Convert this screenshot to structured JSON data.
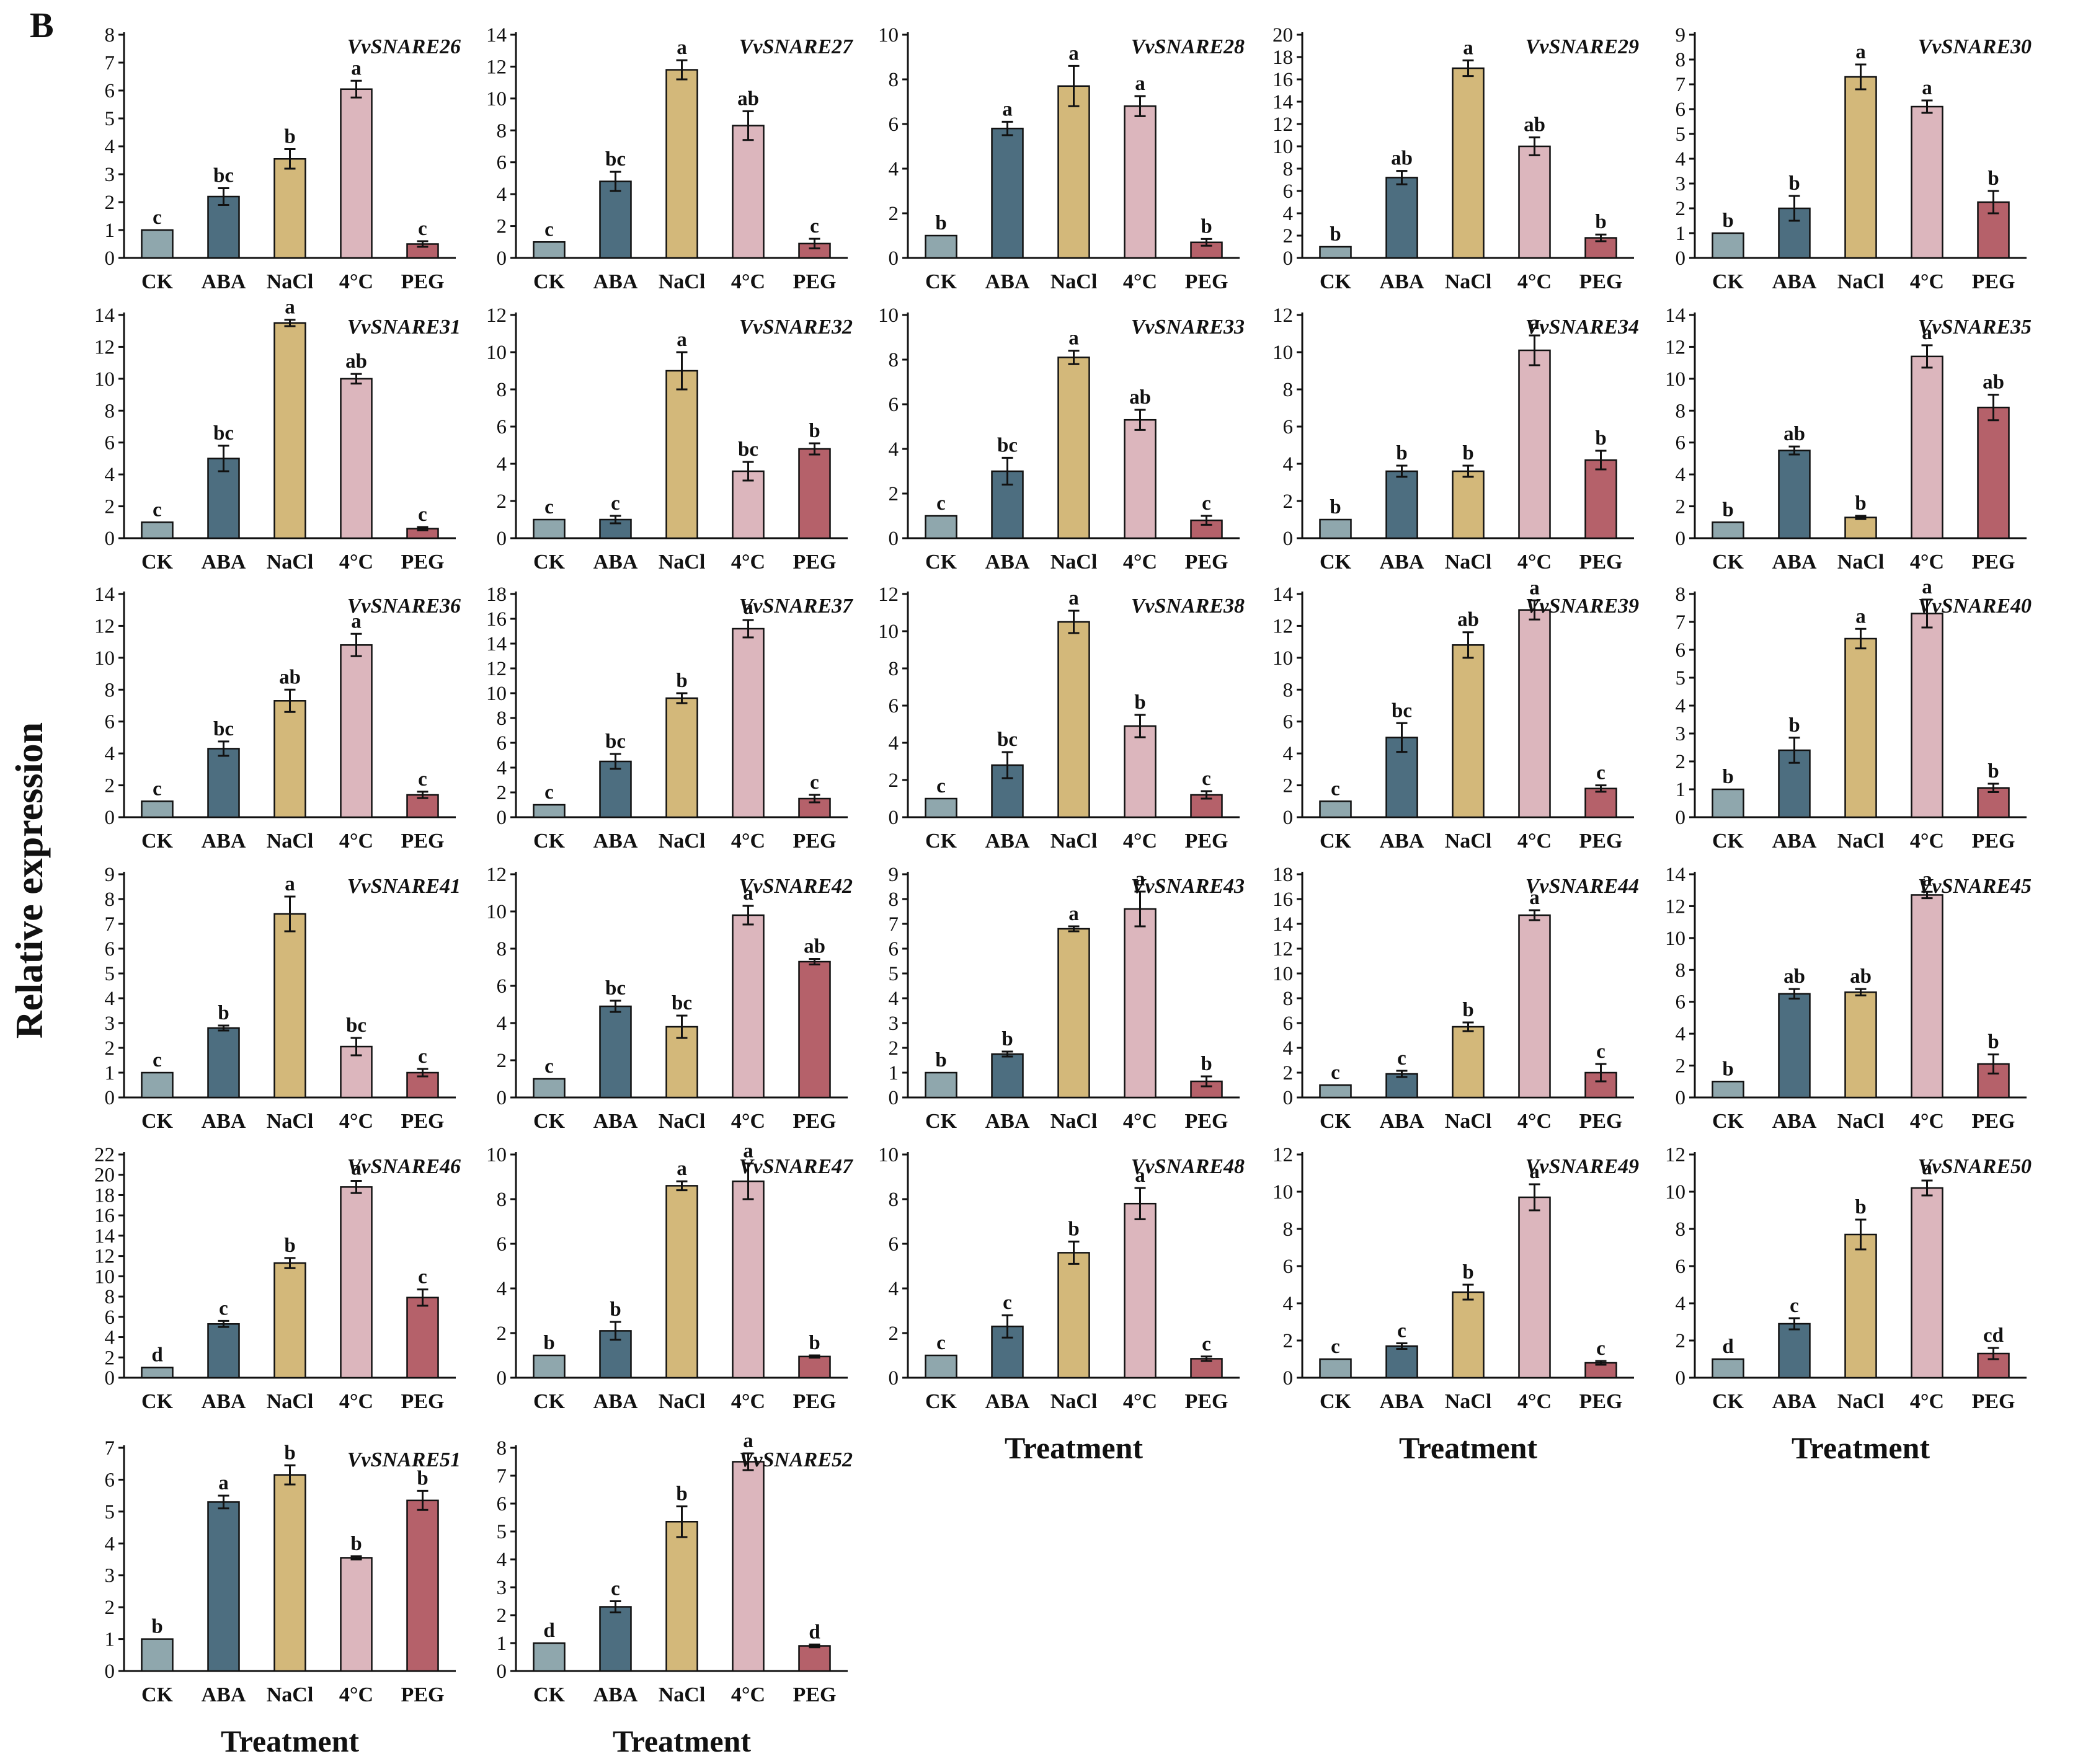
{
  "panel_label": "B",
  "y_axis_label": "Relative expression",
  "x_axis_label": "Treatment",
  "colors": {
    "CK": "#8fa7ad",
    "ABA": "#4d6e80",
    "NaCl": "#d3b87a",
    "4°C": "#dcb6bd",
    "PEG": "#b5616a"
  },
  "chart_data": [
    {
      "type": "bar",
      "title": "VvSNARE26",
      "categories": [
        "CK",
        "ABA",
        "NaCl",
        "4°C",
        "PEG"
      ],
      "values": [
        1.0,
        2.2,
        3.55,
        6.05,
        0.5
      ],
      "errors": [
        0.0,
        0.3,
        0.35,
        0.3,
        0.1
      ],
      "letters": [
        "c",
        "bc",
        "b",
        "a",
        "c"
      ],
      "ylim": [
        0,
        8
      ],
      "yticks": [
        "0",
        "1",
        "2",
        "3",
        "4",
        "5",
        "6",
        "7",
        "8"
      ],
      "xlabel": "",
      "ylabel": "Relative expression"
    },
    {
      "type": "bar",
      "title": "VvSNARE27",
      "categories": [
        "CK",
        "ABA",
        "NaCl",
        "4°C",
        "PEG"
      ],
      "values": [
        1.0,
        4.8,
        11.8,
        8.3,
        0.9
      ],
      "errors": [
        0.0,
        0.6,
        0.6,
        0.9,
        0.3
      ],
      "letters": [
        "c",
        "bc",
        "a",
        "ab",
        "c"
      ],
      "ylim": [
        0,
        14
      ],
      "yticks": [
        "0",
        "2",
        "4",
        "6",
        "8",
        "10",
        "12",
        "14"
      ],
      "xlabel": "",
      "ylabel": ""
    },
    {
      "type": "bar",
      "title": "VvSNARE28",
      "categories": [
        "CK",
        "ABA",
        "NaCl",
        "4°C",
        "PEG"
      ],
      "values": [
        1.0,
        5.8,
        7.7,
        6.8,
        0.7
      ],
      "errors": [
        0.0,
        0.3,
        0.9,
        0.45,
        0.15
      ],
      "letters": [
        "b",
        "a",
        "a",
        "a",
        "b"
      ],
      "ylim": [
        0,
        10
      ],
      "yticks": [
        "0",
        "2",
        "4",
        "6",
        "8",
        "10"
      ],
      "xlabel": "",
      "ylabel": ""
    },
    {
      "type": "bar",
      "title": "VvSNARE29",
      "categories": [
        "CK",
        "ABA",
        "NaCl",
        "4°C",
        "PEG"
      ],
      "values": [
        1.0,
        7.2,
        17.0,
        10.0,
        1.8
      ],
      "errors": [
        0.0,
        0.6,
        0.7,
        0.8,
        0.3
      ],
      "letters": [
        "b",
        "ab",
        "a",
        "ab",
        "b"
      ],
      "ylim": [
        0,
        20
      ],
      "yticks": [
        "0",
        "2",
        "4",
        "6",
        "8",
        "10",
        "12",
        "14",
        "16",
        "18",
        "20"
      ],
      "xlabel": "",
      "ylabel": ""
    },
    {
      "type": "bar",
      "title": "VvSNARE30",
      "categories": [
        "CK",
        "ABA",
        "NaCl",
        "4°C",
        "PEG"
      ],
      "values": [
        1.0,
        2.0,
        7.3,
        6.1,
        2.25
      ],
      "errors": [
        0.0,
        0.5,
        0.5,
        0.25,
        0.45
      ],
      "letters": [
        "b",
        "b",
        "a",
        "a",
        "b"
      ],
      "ylim": [
        0,
        9
      ],
      "yticks": [
        "0",
        "1",
        "2",
        "3",
        "4",
        "5",
        "6",
        "7",
        "8",
        "9"
      ],
      "xlabel": "",
      "ylabel": ""
    },
    {
      "type": "bar",
      "title": "VvSNARE31",
      "categories": [
        "CK",
        "ABA",
        "NaCl",
        "4°C",
        "PEG"
      ],
      "values": [
        1.0,
        5.0,
        13.5,
        10.0,
        0.6
      ],
      "errors": [
        0.0,
        0.8,
        0.2,
        0.3,
        0.1
      ],
      "letters": [
        "c",
        "bc",
        "a",
        "ab",
        "c"
      ],
      "ylim": [
        0,
        14
      ],
      "yticks": [
        "0",
        "2",
        "4",
        "6",
        "8",
        "10",
        "12",
        "14"
      ],
      "xlabel": "",
      "ylabel": ""
    },
    {
      "type": "bar",
      "title": "VvSNARE32",
      "categories": [
        "CK",
        "ABA",
        "NaCl",
        "4°C",
        "PEG"
      ],
      "values": [
        1.0,
        1.0,
        9.0,
        3.6,
        4.8
      ],
      "errors": [
        0.0,
        0.2,
        1.0,
        0.5,
        0.3
      ],
      "letters": [
        "c",
        "c",
        "a",
        "bc",
        "b"
      ],
      "ylim": [
        0,
        12
      ],
      "yticks": [
        "0",
        "2",
        "4",
        "6",
        "8",
        "10",
        "12"
      ],
      "xlabel": "",
      "ylabel": ""
    },
    {
      "type": "bar",
      "title": "VvSNARE33",
      "categories": [
        "CK",
        "ABA",
        "NaCl",
        "4°C",
        "PEG"
      ],
      "values": [
        1.0,
        3.0,
        8.1,
        5.3,
        0.8
      ],
      "errors": [
        0.0,
        0.6,
        0.3,
        0.45,
        0.2
      ],
      "letters": [
        "c",
        "bc",
        "a",
        "ab",
        "c"
      ],
      "ylim": [
        0,
        10
      ],
      "yticks": [
        "0",
        "2",
        "4",
        "6",
        "8",
        "10"
      ],
      "xlabel": "",
      "ylabel": ""
    },
    {
      "type": "bar",
      "title": "VvSNARE34",
      "categories": [
        "CK",
        "ABA",
        "NaCl",
        "4°C",
        "PEG"
      ],
      "values": [
        1.0,
        3.6,
        3.6,
        10.1,
        4.2
      ],
      "errors": [
        0.0,
        0.3,
        0.3,
        0.8,
        0.5
      ],
      "letters": [
        "b",
        "b",
        "b",
        "a",
        "b"
      ],
      "ylim": [
        0,
        12
      ],
      "yticks": [
        "0",
        "2",
        "4",
        "6",
        "8",
        "10",
        "12"
      ],
      "xlabel": "",
      "ylabel": ""
    },
    {
      "type": "bar",
      "title": "VvSNARE35",
      "categories": [
        "CK",
        "ABA",
        "NaCl",
        "4°C",
        "PEG"
      ],
      "values": [
        1.0,
        5.5,
        1.3,
        11.4,
        8.2
      ],
      "errors": [
        0.0,
        0.25,
        0.1,
        0.7,
        0.8
      ],
      "letters": [
        "b",
        "ab",
        "b",
        "a",
        "ab"
      ],
      "ylim": [
        0,
        14
      ],
      "yticks": [
        "0",
        "2",
        "4",
        "6",
        "8",
        "10",
        "12",
        "14"
      ],
      "xlabel": "",
      "ylabel": ""
    },
    {
      "type": "bar",
      "title": "VvSNARE36",
      "categories": [
        "CK",
        "ABA",
        "NaCl",
        "4°C",
        "PEG"
      ],
      "values": [
        1.0,
        4.3,
        7.3,
        10.8,
        1.4
      ],
      "errors": [
        0.0,
        0.45,
        0.7,
        0.7,
        0.2
      ],
      "letters": [
        "c",
        "bc",
        "ab",
        "a",
        "c"
      ],
      "ylim": [
        0,
        14
      ],
      "yticks": [
        "0",
        "2",
        "4",
        "6",
        "8",
        "10",
        "12",
        "14"
      ],
      "xlabel": "",
      "ylabel": ""
    },
    {
      "type": "bar",
      "title": "VvSNARE37",
      "categories": [
        "CK",
        "ABA",
        "NaCl",
        "4°C",
        "PEG"
      ],
      "values": [
        1.0,
        4.5,
        9.6,
        15.2,
        1.5
      ],
      "errors": [
        0.0,
        0.6,
        0.4,
        0.7,
        0.3
      ],
      "letters": [
        "c",
        "bc",
        "b",
        "a",
        "c"
      ],
      "ylim": [
        0,
        18
      ],
      "yticks": [
        "0",
        "2",
        "4",
        "6",
        "8",
        "10",
        "12",
        "14",
        "16",
        "18"
      ],
      "xlabel": "",
      "ylabel": ""
    },
    {
      "type": "bar",
      "title": "VvSNARE38",
      "categories": [
        "CK",
        "ABA",
        "NaCl",
        "4°C",
        "PEG"
      ],
      "values": [
        1.0,
        2.8,
        10.5,
        4.9,
        1.2
      ],
      "errors": [
        0.0,
        0.7,
        0.6,
        0.6,
        0.2
      ],
      "letters": [
        "c",
        "bc",
        "a",
        "b",
        "c"
      ],
      "ylim": [
        0,
        12
      ],
      "yticks": [
        "0",
        "2",
        "4",
        "6",
        "8",
        "10",
        "12"
      ],
      "xlabel": "",
      "ylabel": ""
    },
    {
      "type": "bar",
      "title": "VvSNARE39",
      "categories": [
        "CK",
        "ABA",
        "NaCl",
        "4°C",
        "PEG"
      ],
      "values": [
        1.0,
        5.0,
        10.8,
        13.0,
        1.8
      ],
      "errors": [
        0.0,
        0.9,
        0.8,
        0.6,
        0.2
      ],
      "letters": [
        "c",
        "bc",
        "ab",
        "a",
        "c"
      ],
      "ylim": [
        0,
        14
      ],
      "yticks": [
        "0",
        "2",
        "4",
        "6",
        "8",
        "10",
        "12",
        "14"
      ],
      "xlabel": "",
      "ylabel": ""
    },
    {
      "type": "bar",
      "title": "VvSNARE40",
      "categories": [
        "CK",
        "ABA",
        "NaCl",
        "4°C",
        "PEG"
      ],
      "values": [
        1.0,
        2.4,
        6.4,
        7.3,
        1.05
      ],
      "errors": [
        0.0,
        0.45,
        0.35,
        0.5,
        0.15
      ],
      "letters": [
        "b",
        "b",
        "a",
        "a",
        "b"
      ],
      "ylim": [
        0,
        8
      ],
      "yticks": [
        "0",
        "1",
        "2",
        "3",
        "4",
        "5",
        "6",
        "7",
        "8"
      ],
      "xlabel": "",
      "ylabel": ""
    },
    {
      "type": "bar",
      "title": "VvSNARE41",
      "categories": [
        "CK",
        "ABA",
        "NaCl",
        "4°C",
        "PEG"
      ],
      "values": [
        1.0,
        2.8,
        7.4,
        2.05,
        1.0
      ],
      "errors": [
        0.0,
        0.1,
        0.7,
        0.35,
        0.15
      ],
      "letters": [
        "c",
        "b",
        "a",
        "bc",
        "c"
      ],
      "ylim": [
        0,
        9
      ],
      "yticks": [
        "0",
        "1",
        "2",
        "3",
        "4",
        "5",
        "6",
        "7",
        "8",
        "9"
      ],
      "xlabel": "",
      "ylabel": ""
    },
    {
      "type": "bar",
      "title": "VvSNARE42",
      "categories": [
        "CK",
        "ABA",
        "NaCl",
        "4°C",
        "PEG"
      ],
      "values": [
        1.0,
        4.9,
        3.8,
        9.8,
        7.3
      ],
      "errors": [
        0.0,
        0.3,
        0.6,
        0.5,
        0.15
      ],
      "letters": [
        "c",
        "bc",
        "bc",
        "a",
        "ab"
      ],
      "ylim": [
        0,
        12
      ],
      "yticks": [
        "0",
        "2",
        "4",
        "6",
        "8",
        "10",
        "12"
      ],
      "xlabel": "",
      "ylabel": ""
    },
    {
      "type": "bar",
      "title": "VvSNARE43",
      "categories": [
        "CK",
        "ABA",
        "NaCl",
        "4°C",
        "PEG"
      ],
      "values": [
        1.0,
        1.75,
        6.8,
        7.6,
        0.65
      ],
      "errors": [
        0.0,
        0.1,
        0.1,
        0.7,
        0.2
      ],
      "letters": [
        "b",
        "b",
        "a",
        "a",
        "b"
      ],
      "ylim": [
        0,
        9
      ],
      "yticks": [
        "0",
        "1",
        "2",
        "3",
        "4",
        "5",
        "6",
        "7",
        "8",
        "9"
      ],
      "xlabel": "",
      "ylabel": ""
    },
    {
      "type": "bar",
      "title": "VvSNARE44",
      "categories": [
        "CK",
        "ABA",
        "NaCl",
        "4°C",
        "PEG"
      ],
      "values": [
        1.0,
        1.9,
        5.7,
        14.7,
        2.0
      ],
      "errors": [
        0.0,
        0.25,
        0.35,
        0.4,
        0.7
      ],
      "letters": [
        "c",
        "c",
        "b",
        "a",
        "c"
      ],
      "ylim": [
        0,
        18
      ],
      "yticks": [
        "0",
        "2",
        "4",
        "6",
        "8",
        "10",
        "12",
        "14",
        "16",
        "18"
      ],
      "xlabel": "",
      "ylabel": ""
    },
    {
      "type": "bar",
      "title": "VvSNARE45",
      "categories": [
        "CK",
        "ABA",
        "NaCl",
        "4°C",
        "PEG"
      ],
      "values": [
        1.0,
        6.5,
        6.6,
        12.7,
        2.1
      ],
      "errors": [
        0.0,
        0.3,
        0.2,
        0.2,
        0.6
      ],
      "letters": [
        "b",
        "ab",
        "ab",
        "a",
        "b"
      ],
      "ylim": [
        0,
        14
      ],
      "yticks": [
        "0",
        "2",
        "4",
        "6",
        "8",
        "10",
        "12",
        "14"
      ],
      "xlabel": "",
      "ylabel": ""
    },
    {
      "type": "bar",
      "title": "VvSNARE46",
      "categories": [
        "CK",
        "ABA",
        "NaCl",
        "4°C",
        "PEG"
      ],
      "values": [
        1.0,
        5.3,
        11.3,
        18.8,
        7.9
      ],
      "errors": [
        0.0,
        0.3,
        0.5,
        0.6,
        0.8
      ],
      "letters": [
        "d",
        "c",
        "b",
        "a",
        "c"
      ],
      "ylim": [
        0,
        22
      ],
      "yticks": [
        "0",
        "2",
        "4",
        "6",
        "8",
        "10",
        "12",
        "14",
        "16",
        "18",
        "20",
        "22"
      ],
      "xlabel": "",
      "ylabel": ""
    },
    {
      "type": "bar",
      "title": "VvSNARE47",
      "categories": [
        "CK",
        "ABA",
        "NaCl",
        "4°C",
        "PEG"
      ],
      "values": [
        1.0,
        2.1,
        8.6,
        8.8,
        0.95
      ],
      "errors": [
        0.0,
        0.4,
        0.2,
        0.8,
        0.05
      ],
      "letters": [
        "b",
        "b",
        "a",
        "a",
        "b"
      ],
      "ylim": [
        0,
        10
      ],
      "yticks": [
        "0",
        "2",
        "4",
        "6",
        "8",
        "10"
      ],
      "xlabel": "",
      "ylabel": ""
    },
    {
      "type": "bar",
      "title": "VvSNARE48",
      "categories": [
        "CK",
        "ABA",
        "NaCl",
        "4°C",
        "PEG"
      ],
      "values": [
        1.0,
        2.3,
        5.6,
        7.8,
        0.85
      ],
      "errors": [
        0.0,
        0.5,
        0.5,
        0.7,
        0.1
      ],
      "letters": [
        "c",
        "c",
        "b",
        "a",
        "c"
      ],
      "ylim": [
        0,
        10
      ],
      "yticks": [
        "0",
        "2",
        "4",
        "6",
        "8",
        "10"
      ],
      "xlabel": "Treatment",
      "ylabel": ""
    },
    {
      "type": "bar",
      "title": "VvSNARE49",
      "categories": [
        "CK",
        "ABA",
        "NaCl",
        "4°C",
        "PEG"
      ],
      "values": [
        1.0,
        1.7,
        4.6,
        9.7,
        0.8
      ],
      "errors": [
        0.0,
        0.15,
        0.4,
        0.7,
        0.1
      ],
      "letters": [
        "c",
        "c",
        "b",
        "a",
        "c"
      ],
      "ylim": [
        0,
        12
      ],
      "yticks": [
        "0",
        "2",
        "4",
        "6",
        "8",
        "10",
        "12"
      ],
      "xlabel": "Treatment",
      "ylabel": ""
    },
    {
      "type": "bar",
      "title": "VvSNARE50",
      "categories": [
        "CK",
        "ABA",
        "NaCl",
        "4°C",
        "PEG"
      ],
      "values": [
        1.0,
        2.9,
        7.7,
        10.2,
        1.3
      ],
      "errors": [
        0.0,
        0.3,
        0.8,
        0.4,
        0.3
      ],
      "letters": [
        "d",
        "c",
        "b",
        "a",
        "cd"
      ],
      "ylim": [
        0,
        12
      ],
      "yticks": [
        "0",
        "2",
        "4",
        "6",
        "8",
        "10",
        "12"
      ],
      "xlabel": "Treatment",
      "ylabel": ""
    },
    {
      "type": "bar",
      "title": "VvSNARE51",
      "categories": [
        "CK",
        "ABA",
        "NaCl",
        "4°C",
        "PEG"
      ],
      "values": [
        1.0,
        5.3,
        6.15,
        3.55,
        5.35
      ],
      "errors": [
        0.0,
        0.2,
        0.3,
        0.05,
        0.3
      ],
      "letters": [
        "b",
        "a",
        "b",
        "b",
        "b"
      ],
      "ylim": [
        0,
        7
      ],
      "yticks": [
        "0",
        "1",
        "2",
        "3",
        "4",
        "5",
        "6",
        "7"
      ],
      "xlabel": "Treatment",
      "ylabel": ""
    },
    {
      "type": "bar",
      "title": "VvSNARE52",
      "categories": [
        "CK",
        "ABA",
        "NaCl",
        "4°C",
        "PEG"
      ],
      "values": [
        1.0,
        2.3,
        5.35,
        7.5,
        0.9
      ],
      "errors": [
        0.0,
        0.2,
        0.55,
        0.3,
        0.05
      ],
      "letters": [
        "d",
        "c",
        "b",
        "a",
        "d"
      ],
      "ylim": [
        0,
        8
      ],
      "yticks": [
        "0",
        "1",
        "2",
        "3",
        "4",
        "5",
        "6",
        "7",
        "8"
      ],
      "xlabel": "Treatment",
      "ylabel": ""
    }
  ]
}
